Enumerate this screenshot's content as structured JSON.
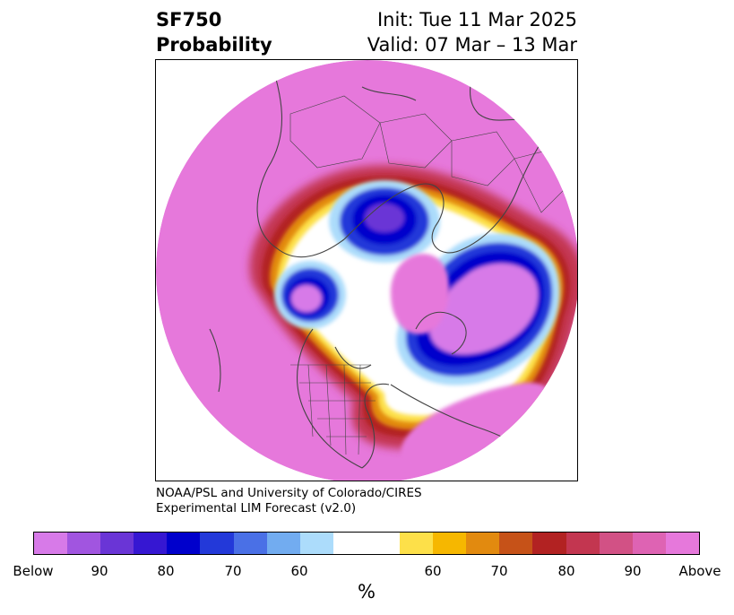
{
  "header": {
    "variable": "SF750",
    "product": "Probability",
    "init": "Init: Tue 11 Mar 2025",
    "valid": "Valid: 07 Mar – 13 Mar"
  },
  "credit": {
    "line1": "NOAA/PSL and University of Colorado/CIRES",
    "line2": "Experimental LIM Forecast (v2.0)"
  },
  "colorbar": {
    "colors": [
      "#d77ae8",
      "#a155e0",
      "#6a35d6",
      "#3617d2",
      "#0000cc",
      "#2339d9",
      "#4a70e6",
      "#72acf0",
      "#acdcfb",
      "#ffffff",
      "#ffffff",
      "#fde049",
      "#f6b700",
      "#e28a0f",
      "#c65218",
      "#b22222",
      "#c33650",
      "#d25185",
      "#de63b3",
      "#e678db"
    ],
    "tick_labels": [
      "Below",
      "90",
      "80",
      "70",
      "60",
      "60",
      "70",
      "80",
      "90",
      "Above"
    ],
    "unit": "%"
  },
  "map_colors": {
    "above": "#e678db",
    "above2": "#de63b3",
    "above3": "#c33650",
    "red": "#b22222",
    "orange": "#e28a0f",
    "yellow": "#fde049",
    "white": "#ffffff",
    "lightblue": "#acdcfb",
    "blue": "#2339d9",
    "darkblue": "#0000cc",
    "purple": "#6a35d6",
    "below": "#d77ae8",
    "coast": "#444444"
  }
}
